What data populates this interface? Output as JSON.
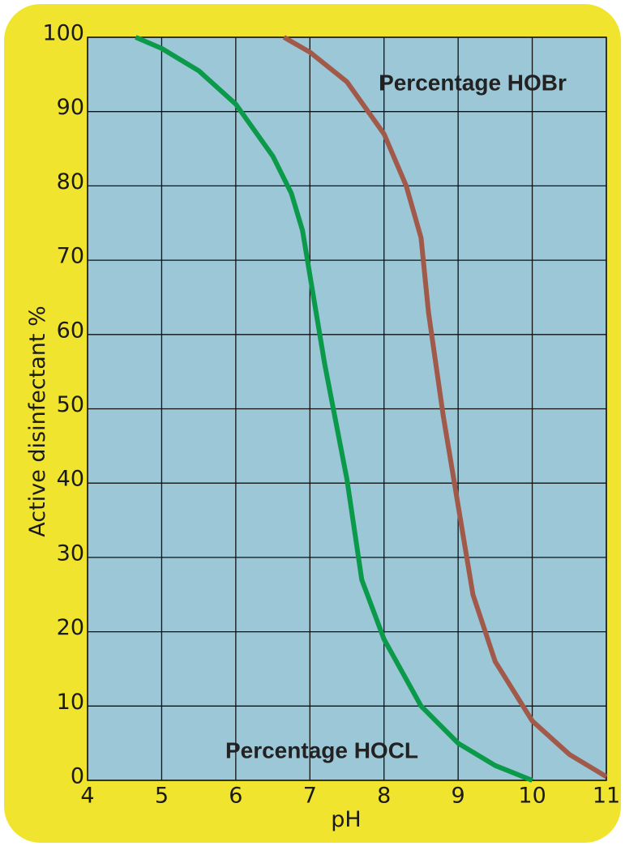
{
  "chart_data": {
    "type": "line",
    "x_label": "pH",
    "y_label": "Active disinfectant %",
    "xlim": [
      4,
      11
    ],
    "xticks": [
      4,
      5,
      6,
      7,
      8,
      9,
      10,
      11
    ],
    "ylim": [
      0,
      100
    ],
    "yticks": [
      0,
      10,
      20,
      30,
      40,
      50,
      60,
      70,
      80,
      90,
      100
    ],
    "grid": true,
    "series": [
      {
        "name": "Percentage HOCL",
        "color": "#0b9a4a",
        "x": [
          4.65,
          5,
          5.5,
          6,
          6.5,
          6.75,
          6.9,
          7,
          7.2,
          7.5,
          7.7,
          8,
          8.5,
          9,
          9.5,
          10
        ],
        "values": [
          100,
          98.5,
          95.5,
          91,
          84,
          79,
          74,
          68,
          56,
          40.5,
          27,
          19,
          10,
          5,
          2,
          0
        ]
      },
      {
        "name": "Percentage HOBr",
        "color": "#a15a4a",
        "x": [
          6.65,
          7,
          7.5,
          8,
          8.3,
          8.5,
          8.6,
          8.8,
          9,
          9.2,
          9.5,
          10,
          10.5,
          11
        ],
        "values": [
          100,
          98,
          94,
          87,
          80,
          73,
          63,
          49,
          37,
          25,
          16,
          8,
          3.5,
          0.5
        ]
      }
    ]
  }
}
